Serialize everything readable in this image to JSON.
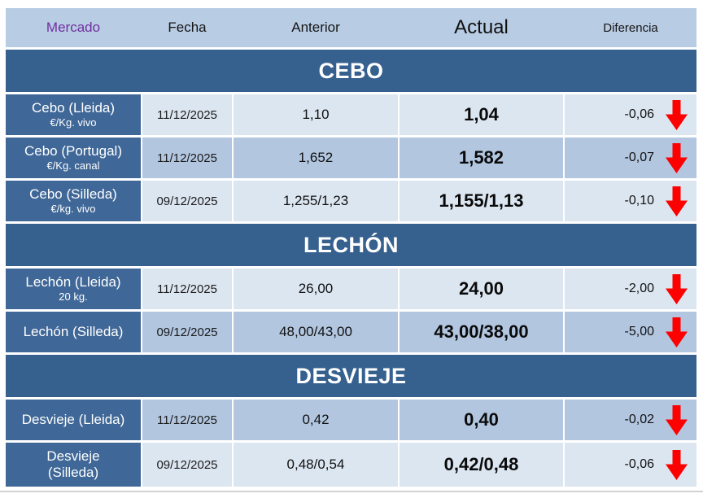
{
  "header": {
    "mercado": "Mercado",
    "fecha": "Fecha",
    "anterior": "Anterior",
    "actual": "Actual",
    "diferencia": "Diferencia"
  },
  "sections": [
    {
      "id": "cebo",
      "title": "CEBO",
      "rows": [
        {
          "market": "Cebo (Lleida)",
          "unit": "€/Kg. vivo",
          "fecha": "11/12/2025",
          "anterior": "1,10",
          "actual": "1,04",
          "diferencia": "-0,06",
          "trend": "down",
          "shade": "light"
        },
        {
          "market": "Cebo (Portugal)",
          "unit": "€/Kg. canal",
          "fecha": "11/12/2025",
          "anterior": "1,652",
          "actual": "1,582",
          "diferencia": "-0,07",
          "trend": "down",
          "shade": "dark"
        },
        {
          "market": "Cebo (Silleda)",
          "unit": "€/kg. vivo",
          "fecha": "09/12/2025",
          "anterior": "1,255/1,23",
          "actual": "1,155/1,13",
          "diferencia": "-0,10",
          "trend": "down",
          "shade": "light"
        }
      ]
    },
    {
      "id": "lechon",
      "title": "LECHÓN",
      "rows": [
        {
          "market": "Lechón (Lleida)",
          "unit": "20 kg.",
          "fecha": "11/12/2025",
          "anterior": "26,00",
          "actual": "24,00",
          "diferencia": "-2,00",
          "trend": "down",
          "shade": "light"
        },
        {
          "market": "Lechón (Silleda)",
          "unit": "",
          "fecha": "09/12/2025",
          "anterior": "48,00/43,00",
          "actual": "43,00/38,00",
          "diferencia": "-5,00",
          "trend": "down",
          "shade": "dark"
        }
      ]
    },
    {
      "id": "desvieje",
      "title": "DESVIEJE",
      "rows": [
        {
          "market": "Desvieje (Lleida)",
          "unit": "",
          "fecha": "11/12/2025",
          "anterior": "0,42",
          "actual": "0,40",
          "diferencia": "-0,02",
          "trend": "down",
          "shade": "dark"
        },
        {
          "market": "Desvieje (Silleda)",
          "unit": "",
          "fecha": "09/12/2025",
          "anterior": "0,48/0,54",
          "actual": "0,42/0,48",
          "diferencia": "-0,06",
          "trend": "down",
          "shade": "light",
          "wrap": true,
          "tall": true
        }
      ]
    }
  ],
  "icons": {
    "trend_down": "down-arrow-icon"
  },
  "colors": {
    "header_bg": "#b8cce4",
    "mercado_text": "#7030a0",
    "section_bg": "#36618f",
    "label_bg": "#3f6797",
    "row_light": "#dce6f1",
    "row_dark": "#b2c6e0",
    "arrow_red": "#fe0000"
  }
}
